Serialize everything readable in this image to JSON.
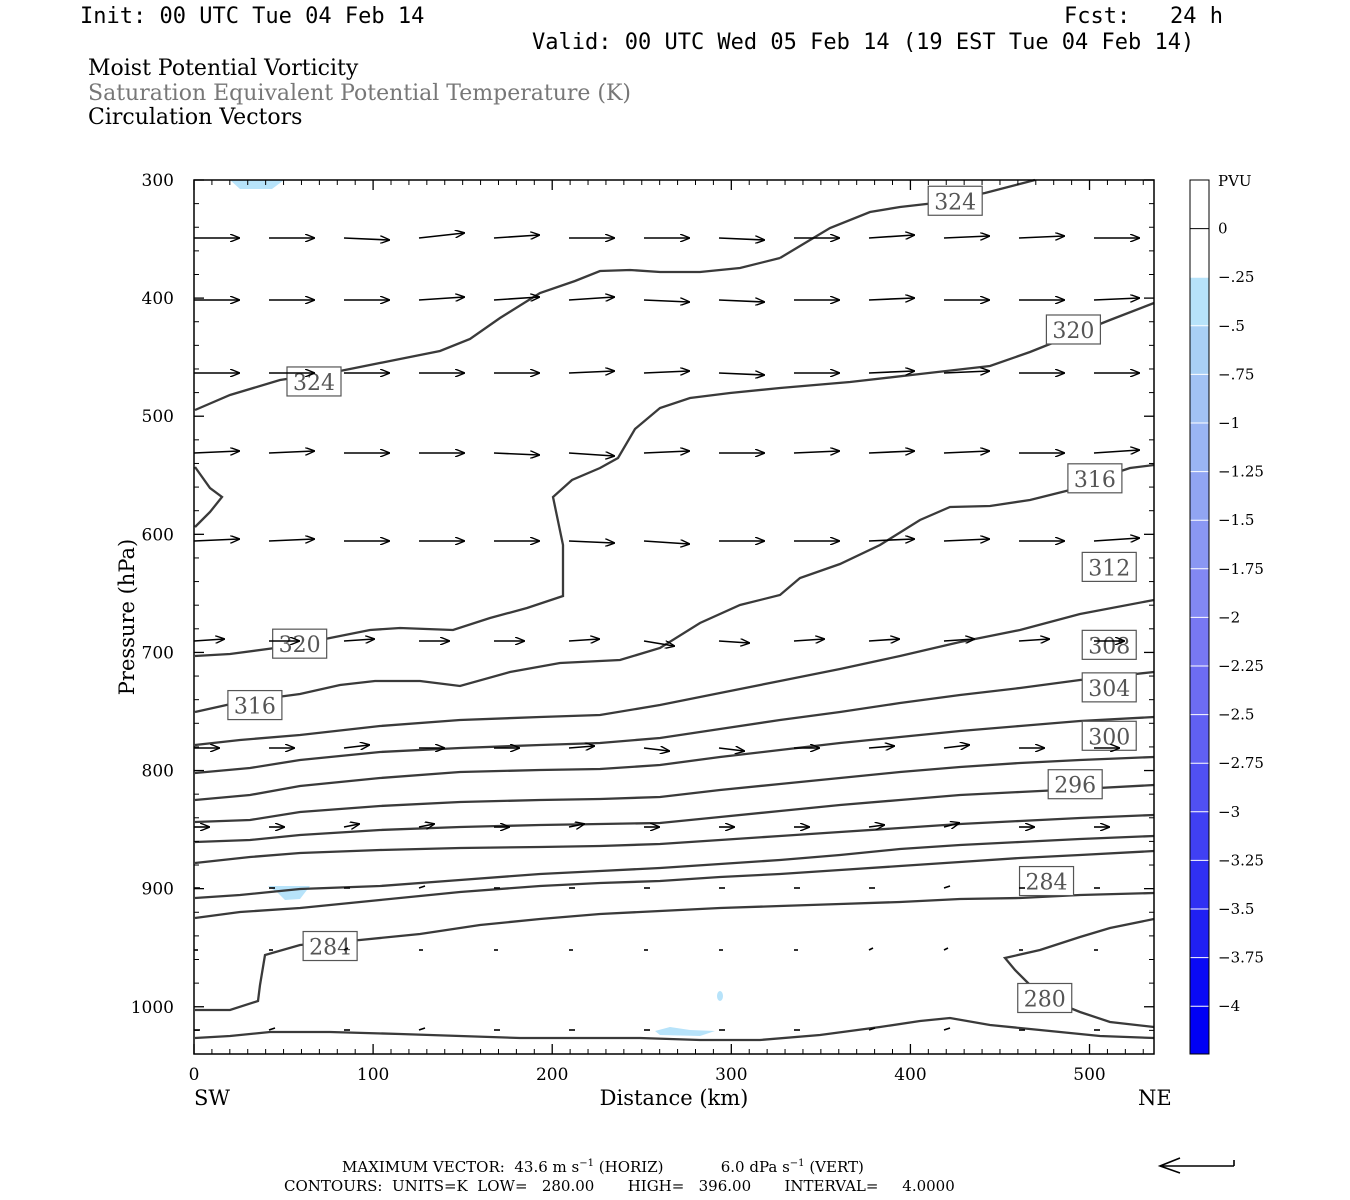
{
  "header": {
    "init": "Init: 00 UTC Tue 04 Feb 14",
    "fcst": "Fcst:   24 h",
    "valid": "Valid: 00 UTC Wed 05 Feb 14 (19 EST Tue 04 Feb 14)"
  },
  "fields": {
    "line1": "Moist Potential Vorticity",
    "line2": "Saturation Equivalent Potential Temperature (K)",
    "line3": "Circulation Vectors"
  },
  "footer": {
    "max_label": "MAXIMUM VECTOR:",
    "max_horiz_value": "43.6 m s",
    "max_horiz_unit": "(HORIZ)",
    "max_vert_value": "6.0 dPa s",
    "max_vert_unit": "(VERT)",
    "exponent": "−1",
    "contours": "CONTOURS:  UNITS=K  LOW=   280.00       HIGH=   396.00       INTERVAL=     4.0000"
  },
  "colors": {
    "contour": "#3a3a3a",
    "axis": "#000000",
    "label_box": "#555555",
    "pv_shade": "#b7e3fa"
  },
  "chart_data": {
    "type": "contour",
    "xlabel": "Distance (km)",
    "ylabel": "Pressure (hPa)",
    "xlim": [
      0,
      536
    ],
    "ylim": [
      1040,
      300
    ],
    "x_ticks": [
      0,
      100,
      200,
      300,
      400,
      500
    ],
    "y_ticks": [
      300,
      400,
      500,
      600,
      700,
      800,
      900,
      1000
    ],
    "x_end_labels": {
      "left": "SW",
      "right": "NE"
    },
    "contour_labels": [
      {
        "text": "324",
        "x": 425,
        "p": 318
      },
      {
        "text": "324",
        "x": 67,
        "p": 471
      },
      {
        "text": "320",
        "x": 491,
        "p": 427
      },
      {
        "text": "320",
        "x": 59,
        "p": 693
      },
      {
        "text": "316",
        "x": 503,
        "p": 553
      },
      {
        "text": "316",
        "x": 34,
        "p": 745
      },
      {
        "text": "312",
        "x": 511,
        "p": 628
      },
      {
        "text": "308",
        "x": 511,
        "p": 694
      },
      {
        "text": "304",
        "x": 511,
        "p": 730
      },
      {
        "text": "300",
        "x": 511,
        "p": 771
      },
      {
        "text": "296",
        "x": 492,
        "p": 812
      },
      {
        "text": "284",
        "x": 476,
        "p": 894
      },
      {
        "text": "284",
        "x": 76,
        "p": 949
      },
      {
        "text": "280",
        "x": 475,
        "p": 993
      }
    ],
    "colorbar": {
      "title": "PVU",
      "labels": [
        "0",
        "−.25",
        "−.5",
        "−.75",
        "−1",
        "−1.25",
        "−1.5",
        "−1.75",
        "−2",
        "−2.25",
        "−2.5",
        "−2.75",
        "−3",
        "−3.25",
        "−3.5",
        "−3.75",
        "−4"
      ],
      "colors": [
        "#ffffff",
        "#ffffff",
        "#b7e3fa",
        "#a9d0f5",
        "#a2c2f4",
        "#9ab5f4",
        "#91a5f3",
        "#8a97f3",
        "#8288f3",
        "#7878f3",
        "#6d6cf3",
        "#6060f3",
        "#5050f3",
        "#4040f3",
        "#3030f3",
        "#2020f3",
        "#0a0af5",
        "#0000f5"
      ]
    }
  }
}
